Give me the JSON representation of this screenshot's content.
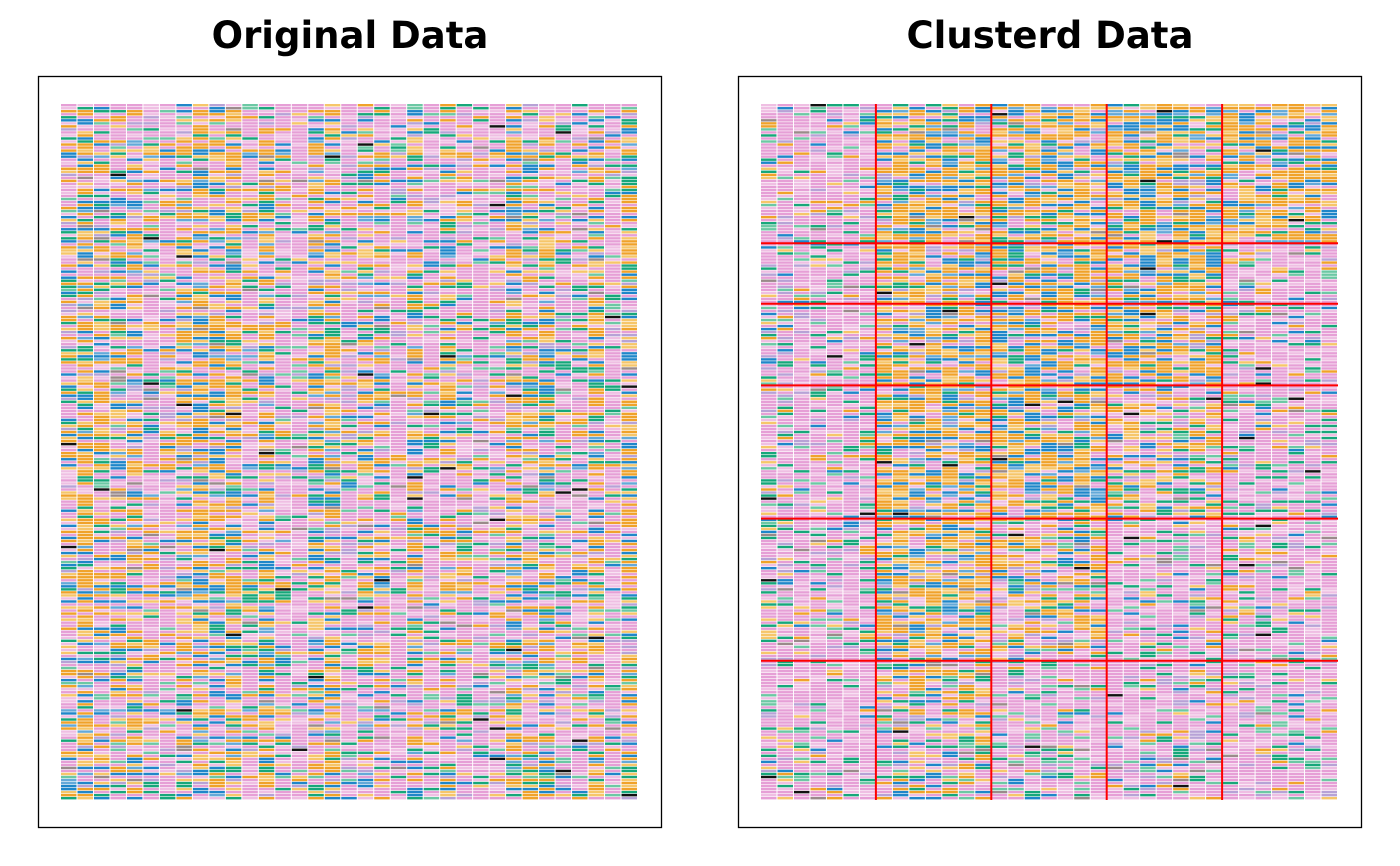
{
  "chart_data": [
    {
      "type": "heatmap",
      "title": "Original Data",
      "n_rows": 230,
      "n_cols": 35,
      "ordering": "original (unsorted rows and columns)"
    },
    {
      "type": "heatmap",
      "title": "Clusterd Data",
      "n_rows": 230,
      "n_cols": 35,
      "row_cluster_boundaries": [
        46,
        66,
        93,
        137,
        184
      ],
      "col_cluster_boundaries": [
        7,
        14,
        21,
        28
      ],
      "boundary_color": "#ff0000",
      "cluster_profile": [
        [
          "pink",
          "orange",
          "orange",
          "orange",
          "orange"
        ],
        [
          "pink",
          "orange",
          "orange",
          "orange",
          "pink"
        ],
        [
          "pink",
          "orange",
          "orange",
          "orange",
          "pink"
        ],
        [
          "pink",
          "orange",
          "orange",
          "mixed",
          "pink"
        ],
        [
          "pink",
          "orange",
          "mixed",
          "pink",
          "pink"
        ],
        [
          "pink",
          "mixed",
          "pink",
          "pink",
          "pink"
        ]
      ]
    }
  ],
  "palette": {
    "pink": "#e69fd6",
    "light_pink": "#efbfe3",
    "orange": "#f0a22a",
    "light_orange": "#f6c66a",
    "blue": "#1f86c9",
    "light_blue": "#64a9d8",
    "green": "#16a77a",
    "light_green": "#6cc8a4",
    "lavender": "#b7a2d6",
    "grey": "#9a8a8a",
    "black": "#111111"
  },
  "profiles": {
    "pink": {
      "pink": 0.5,
      "light_pink": 0.17,
      "green": 0.08,
      "light_green": 0.07,
      "lavender": 0.06,
      "orange": 0.04,
      "light_orange": 0.03,
      "blue": 0.03,
      "grey": 0.015,
      "black": 0.005
    },
    "orange": {
      "orange": 0.3,
      "light_orange": 0.17,
      "blue": 0.17,
      "light_blue": 0.06,
      "green": 0.08,
      "pink": 0.12,
      "light_pink": 0.05,
      "lavender": 0.03,
      "grey": 0.015,
      "black": 0.005
    },
    "mixed": {
      "orange": 0.16,
      "light_orange": 0.1,
      "blue": 0.1,
      "green": 0.1,
      "light_green": 0.05,
      "pink": 0.3,
      "light_pink": 0.12,
      "lavender": 0.05,
      "grey": 0.015,
      "black": 0.005
    }
  }
}
